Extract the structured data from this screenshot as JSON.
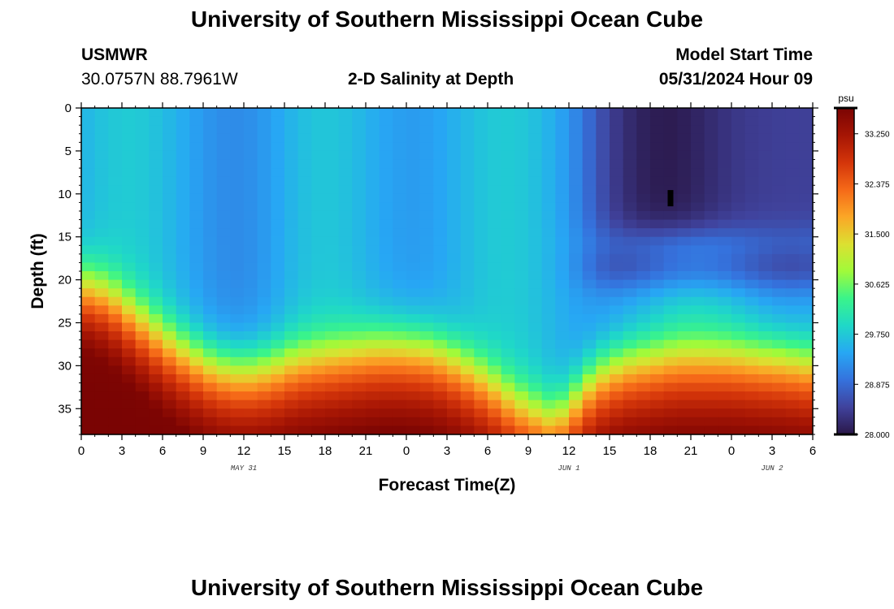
{
  "header": {
    "title": "University of Southern Mississippi Ocean Cube",
    "station": "USMWR",
    "coords": "30.0757N  88.7961W",
    "plot_title": "2-D Salinity at Depth",
    "model_start_label": "Model Start Time",
    "model_start_value": "05/31/2024 Hour 09",
    "footer_title": "University of Southern Mississippi Ocean Cube"
  },
  "chart_data": {
    "type": "heatmap",
    "title": "2-D Salinity at Depth",
    "xlabel": "Forecast Time(Z)",
    "ylabel": "Depth (ft)",
    "x_hours_range": [
      0,
      54
    ],
    "y_range": [
      0,
      38
    ],
    "y_inverted": true,
    "x_tick_labels": [
      "0",
      "3",
      "6",
      "9",
      "12",
      "15",
      "18",
      "21",
      "0",
      "3",
      "6",
      "9",
      "12",
      "15",
      "18",
      "21",
      "0",
      "3",
      "6"
    ],
    "y_tick_labels": [
      "0",
      "5",
      "10",
      "15",
      "20",
      "25",
      "30",
      "35"
    ],
    "date_labels": [
      {
        "label": "MAY 31",
        "hour": 12
      },
      {
        "label": "JUN 1",
        "hour": 36
      },
      {
        "label": "JUN 2",
        "hour": 51
      }
    ],
    "colorbar": {
      "unit": "psu",
      "min": 28.0,
      "max": 33.7,
      "tick_labels": [
        "28.000",
        "28.875",
        "29.750",
        "30.625",
        "31.500",
        "32.375",
        "33.250"
      ],
      "colors": [
        "#2a1748",
        "#40429c",
        "#3572dd",
        "#27a7f4",
        "#1fd8c8",
        "#3af48a",
        "#a0fa3a",
        "#dce031",
        "#fba626",
        "#f56918",
        "#d4350a",
        "#a51504",
        "#7a0403"
      ]
    },
    "interface_depth_ft": [
      {
        "hour": 0,
        "depth": 20
      },
      {
        "hour": 2,
        "depth": 21
      },
      {
        "hour": 4,
        "depth": 23.5
      },
      {
        "hour": 6,
        "depth": 26
      },
      {
        "hour": 8,
        "depth": 28
      },
      {
        "hour": 10,
        "depth": 29.5
      },
      {
        "hour": 12,
        "depth": 30
      },
      {
        "hour": 14,
        "depth": 29.5
      },
      {
        "hour": 16,
        "depth": 28.5
      },
      {
        "hour": 18,
        "depth": 28
      },
      {
        "hour": 20,
        "depth": 27.5
      },
      {
        "hour": 22,
        "depth": 27
      },
      {
        "hour": 24,
        "depth": 27
      },
      {
        "hour": 26,
        "depth": 27.5
      },
      {
        "hour": 28,
        "depth": 29
      },
      {
        "hour": 30,
        "depth": 31
      },
      {
        "hour": 32,
        "depth": 33.5
      },
      {
        "hour": 34,
        "depth": 35
      },
      {
        "hour": 35,
        "depth": 35.5
      },
      {
        "hour": 36,
        "depth": 34
      },
      {
        "hour": 38,
        "depth": 30.5
      },
      {
        "hour": 40,
        "depth": 29
      },
      {
        "hour": 44,
        "depth": 28
      },
      {
        "hour": 48,
        "depth": 28
      },
      {
        "hour": 52,
        "depth": 28.5
      },
      {
        "hour": 54,
        "depth": 29
      }
    ],
    "low_salinity_box": {
      "hour_start": 36,
      "hour_end": 54,
      "depth_top": 0,
      "depth_bottom": 15
    },
    "marker": {
      "hour": 43.5,
      "depth": 10.5
    }
  }
}
